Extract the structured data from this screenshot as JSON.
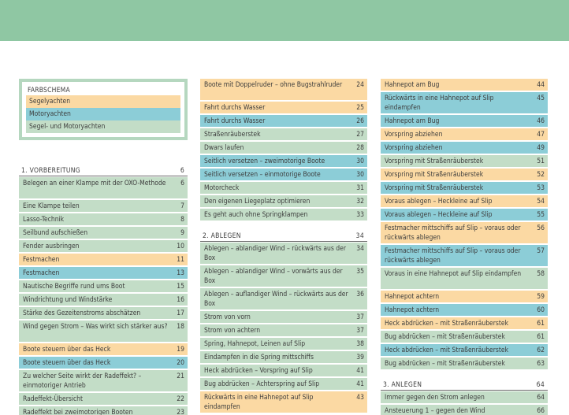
{
  "colors": {
    "segel": "#fbd9a3",
    "motor": "#8ccdd7",
    "both": "#c3ddc7",
    "band": "#8fc7a3"
  },
  "legend": {
    "title": "FARBSCHEMA",
    "rows": [
      {
        "label": "Segelyachten",
        "color": "orange"
      },
      {
        "label": "Motoryachten",
        "color": "blue"
      },
      {
        "label": "Segel- und Motoryachten",
        "color": "green"
      }
    ]
  },
  "columns": [
    [
      {
        "kind": "head",
        "title": "1. VORBEREITUNG",
        "page": "6"
      },
      {
        "kind": "entry",
        "text": "Belegen an einer Klampe mit der OXO-Methode",
        "page": "6",
        "color": "green",
        "two": true
      },
      {
        "kind": "entry",
        "text": "Eine Klampe teilen",
        "page": "7",
        "color": "green"
      },
      {
        "kind": "entry",
        "text": "Lasso-Technik",
        "page": "8",
        "color": "green"
      },
      {
        "kind": "entry",
        "text": "Seilbund aufschießen",
        "page": "9",
        "color": "green"
      },
      {
        "kind": "entry",
        "text": "Fender ausbringen",
        "page": "10",
        "color": "green"
      },
      {
        "kind": "entry",
        "text": "Festmachen",
        "page": "11",
        "color": "orange"
      },
      {
        "kind": "entry",
        "text": "Festmachen",
        "page": "13",
        "color": "blue"
      },
      {
        "kind": "entry",
        "text": "Nautische Begriffe rund ums Boot",
        "page": "15",
        "color": "green"
      },
      {
        "kind": "entry",
        "text": "Windrichtung und Windstärke",
        "page": "16",
        "color": "green"
      },
      {
        "kind": "entry",
        "text": "Stärke des Gezeitenstroms abschätzen",
        "page": "17",
        "color": "green"
      },
      {
        "kind": "entry",
        "text": "Wind gegen Strom – Was wirkt sich stärker aus?",
        "page": "18",
        "color": "green",
        "two": true
      },
      {
        "kind": "entry",
        "text": "Boote steuern über das Heck",
        "page": "19",
        "color": "orange"
      },
      {
        "kind": "entry",
        "text": "Boote steuern über das Heck",
        "page": "20",
        "color": "blue"
      },
      {
        "kind": "entry",
        "text": "Zu welcher Seite wirkt der Radeffekt? – einmotoriger Antrieb",
        "page": "21",
        "color": "green",
        "two": true
      },
      {
        "kind": "entry",
        "text": "Radeffekt-Übersicht",
        "page": "22",
        "color": "green"
      },
      {
        "kind": "entry",
        "text": "Radeffekt bei zweimotorigen Booten",
        "page": "23",
        "color": "green"
      }
    ],
    [
      {
        "kind": "entry",
        "text": "Boote mit Doppelruder – ohne Bugstrahlruder",
        "page": "24",
        "color": "orange",
        "two": true
      },
      {
        "kind": "entry",
        "text": "Fahrt durchs Wasser",
        "page": "25",
        "color": "orange"
      },
      {
        "kind": "entry",
        "text": "Fahrt durchs Wasser",
        "page": "26",
        "color": "blue"
      },
      {
        "kind": "entry",
        "text": "Straßenräuberstek",
        "page": "27",
        "color": "green"
      },
      {
        "kind": "entry",
        "text": "Dwars laufen",
        "page": "28",
        "color": "green"
      },
      {
        "kind": "entry",
        "text": "Seitlich versetzen – zweimotorige Boote",
        "page": "30",
        "color": "blue"
      },
      {
        "kind": "entry",
        "text": "Seitlich versetzen – einmotorige Boote",
        "page": "30",
        "color": "blue"
      },
      {
        "kind": "entry",
        "text": "Motorcheck",
        "page": "31",
        "color": "green"
      },
      {
        "kind": "entry",
        "text": "Den eigenen Liegeplatz optimieren",
        "page": "32",
        "color": "green"
      },
      {
        "kind": "entry",
        "text": "Es geht auch ohne Springklampen",
        "page": "33",
        "color": "green"
      },
      {
        "kind": "gap"
      },
      {
        "kind": "head",
        "title": "2. ABLEGEN",
        "page": "34"
      },
      {
        "kind": "entry",
        "text": "Ablegen – ablandiger Wind – rückwärts aus der Box",
        "page": "34",
        "color": "green",
        "two": true
      },
      {
        "kind": "entry",
        "text": "Ablegen – ablandiger Wind – vorwärts aus der Box",
        "page": "35",
        "color": "green",
        "two": true
      },
      {
        "kind": "entry",
        "text": "Ablegen – auflandiger Wind – rückwärts aus der Box",
        "page": "36",
        "color": "green",
        "two": true
      },
      {
        "kind": "entry",
        "text": "Strom von vorn",
        "page": "37",
        "color": "green"
      },
      {
        "kind": "entry",
        "text": "Strom von achtern",
        "page": "37",
        "color": "green"
      },
      {
        "kind": "entry",
        "text": "Spring, Hahnepot, Leinen auf Slip",
        "page": "38",
        "color": "green"
      },
      {
        "kind": "entry",
        "text": "Eindampfen in die Spring mittschiffs",
        "page": "39",
        "color": "green"
      },
      {
        "kind": "entry",
        "text": "Heck abdrücken – Vorspring auf Slip",
        "page": "41",
        "color": "green"
      },
      {
        "kind": "entry",
        "text": "Bug abdrücken – Achterspring auf Slip",
        "page": "41",
        "color": "green"
      },
      {
        "kind": "entry",
        "text": "Rückwärts in eine Hahnepot auf Slip eindampfen",
        "page": "43",
        "color": "orange",
        "two": true
      }
    ],
    [
      {
        "kind": "entry",
        "text": "Hahnepot am Bug",
        "page": "44",
        "color": "orange"
      },
      {
        "kind": "entry",
        "text": "Rückwärts in eine Hahnepot auf Slip eindampfen",
        "page": "45",
        "color": "blue",
        "two": true
      },
      {
        "kind": "entry",
        "text": "Hahnepot am Bug",
        "page": "46",
        "color": "blue"
      },
      {
        "kind": "entry",
        "text": "Vorspring abziehen",
        "page": "47",
        "color": "orange"
      },
      {
        "kind": "entry",
        "text": "Vorspring abziehen",
        "page": "49",
        "color": "blue"
      },
      {
        "kind": "entry",
        "text": "Vorspring mit Straßenräuberstek",
        "page": "51",
        "color": "green"
      },
      {
        "kind": "entry",
        "text": "Vorspring mit Straßenräuberstek",
        "page": "52",
        "color": "orange"
      },
      {
        "kind": "entry",
        "text": "Vorspring mit Straßenräuberstek",
        "page": "53",
        "color": "blue"
      },
      {
        "kind": "entry",
        "text": "Voraus ablegen – Heckleine auf Slip",
        "page": "54",
        "color": "orange"
      },
      {
        "kind": "entry",
        "text": "Voraus ablegen – Heckleine auf Slip",
        "page": "55",
        "color": "blue"
      },
      {
        "kind": "entry",
        "text": "Festmacher mittschiffs auf Slip – voraus oder rückwärts ablegen",
        "page": "56",
        "color": "orange",
        "two": true
      },
      {
        "kind": "entry",
        "text": "Festmacher mittschiffs auf Slip – voraus oder rückwärts ablegen",
        "page": "57",
        "color": "blue",
        "two": true
      },
      {
        "kind": "entry",
        "text": "Voraus in eine Hahnepot auf Slip eindampfen",
        "page": "58",
        "color": "green",
        "two": true
      },
      {
        "kind": "entry",
        "text": "Hahnepot achtern",
        "page": "59",
        "color": "orange"
      },
      {
        "kind": "entry",
        "text": "Hahnepot achtern",
        "page": "60",
        "color": "blue"
      },
      {
        "kind": "entry",
        "text": "Heck abdrücken – mit Straßenräuberstek",
        "page": "61",
        "color": "orange"
      },
      {
        "kind": "entry",
        "text": "Bug abdrücken – mit Straßenräuberstek",
        "page": "61",
        "color": "green"
      },
      {
        "kind": "entry",
        "text": "Heck abdrücken – mit Straßenräuberstek",
        "page": "62",
        "color": "blue"
      },
      {
        "kind": "entry",
        "text": "Bug abdrücken – mit Straßenräuberstek",
        "page": "63",
        "color": "green"
      },
      {
        "kind": "gap"
      },
      {
        "kind": "head",
        "title": "3. ANLEGEN",
        "page": "64"
      },
      {
        "kind": "entry",
        "text": "Immer gegen den Strom anlegen",
        "page": "64",
        "color": "green"
      },
      {
        "kind": "entry",
        "text": "Ansteuerung 1 – gegen den Wind",
        "page": "66",
        "color": "green"
      }
    ]
  ]
}
